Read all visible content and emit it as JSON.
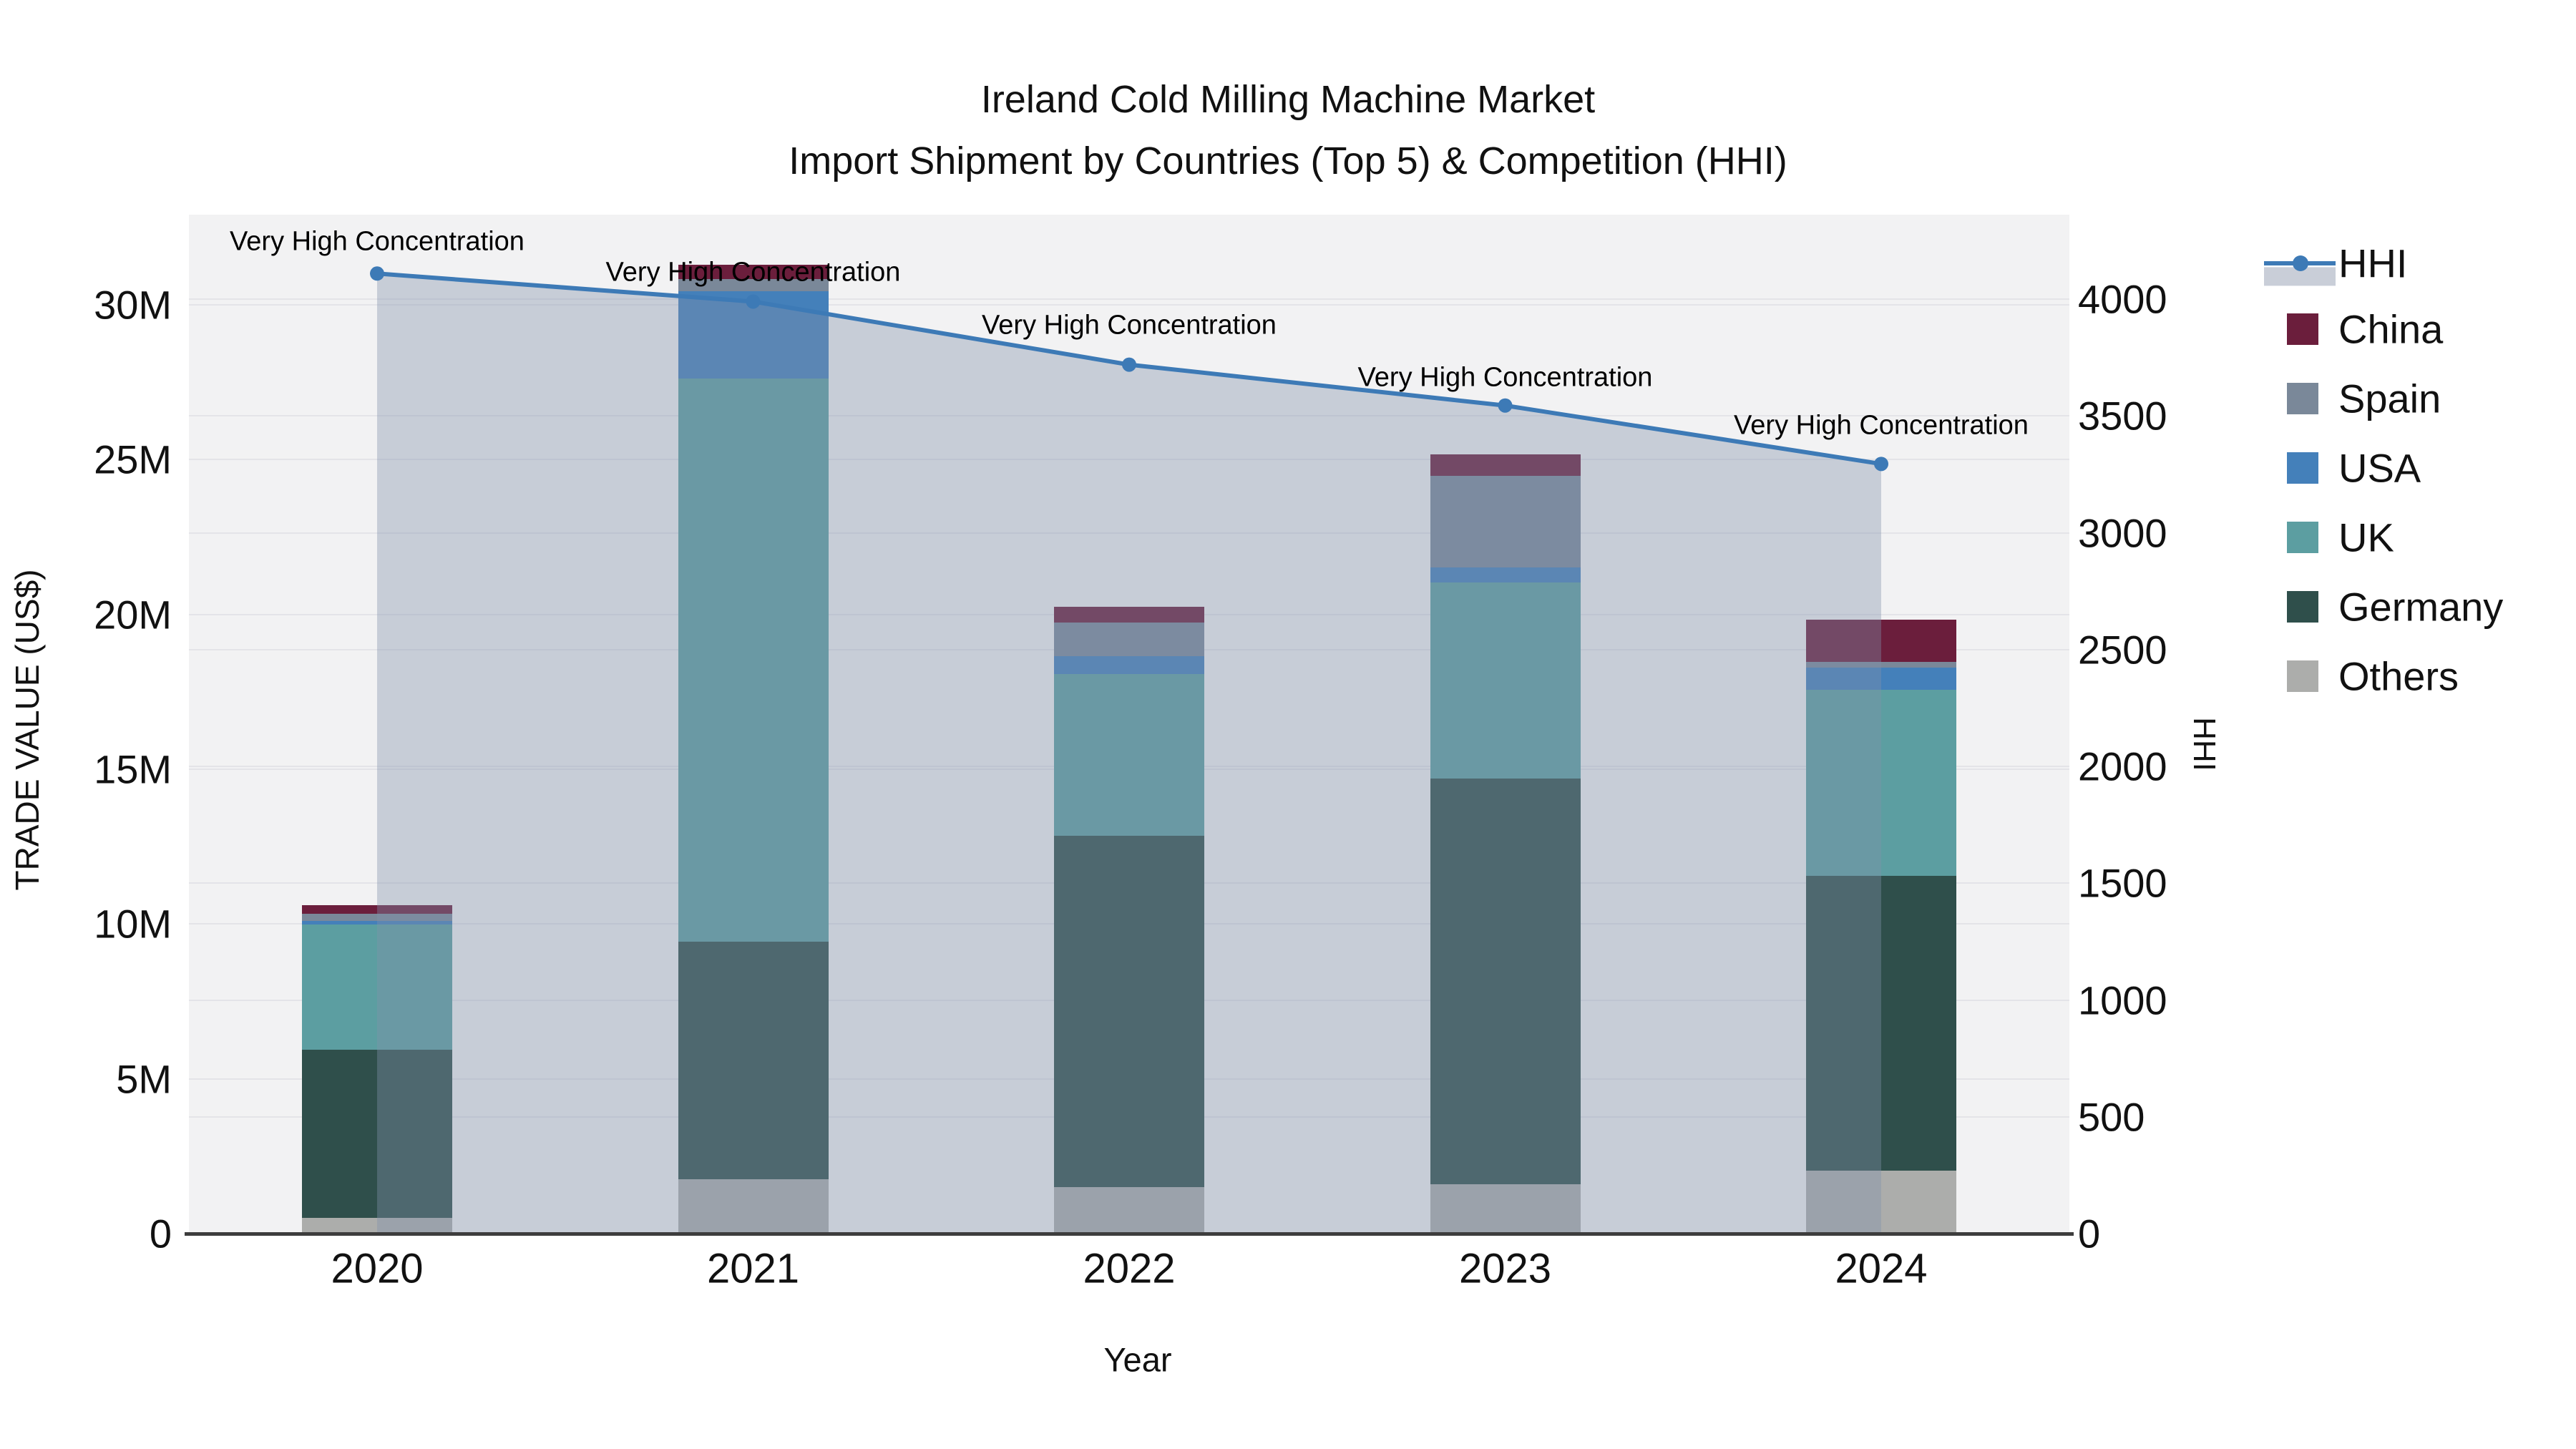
{
  "figure": {
    "title_line1": "Ireland Cold Milling Machine Market",
    "title_line2": "Import Shipment by Countries (Top 5) & Competition (HHI)"
  },
  "axes": {
    "left_title": "TRADE VALUE (US$)",
    "right_title": "HHI",
    "x_title": "Year",
    "left_ticks": [
      "0",
      "5M",
      "10M",
      "15M",
      "20M",
      "25M",
      "30M"
    ],
    "left_tick_values": [
      0,
      5,
      10,
      15,
      20,
      25,
      30
    ],
    "right_ticks": [
      "0",
      "500",
      "1000",
      "1500",
      "2000",
      "2500",
      "3000",
      "3500",
      "4000"
    ],
    "right_tick_values": [
      0,
      500,
      1000,
      1500,
      2000,
      2500,
      3000,
      3500,
      4000
    ]
  },
  "chart_data": {
    "type": "stacked-bar+line",
    "categories": [
      "2020",
      "2021",
      "2022",
      "2023",
      "2024"
    ],
    "value_unit": "M US$",
    "series": [
      {
        "name": "Others",
        "color": "#ACADAB",
        "values": [
          0.5,
          1.76,
          1.5,
          1.6,
          2.03
        ]
      },
      {
        "name": "Germany",
        "color": "#2F4F4B",
        "values": [
          5.45,
          7.67,
          11.35,
          13.1,
          9.53
        ]
      },
      {
        "name": "UK",
        "color": "#5C9EA1",
        "values": [
          4.04,
          18.19,
          5.22,
          6.33,
          6.0
        ]
      },
      {
        "name": "USA",
        "color": "#4480BA",
        "values": [
          0.12,
          2.82,
          0.58,
          0.49,
          0.72
        ]
      },
      {
        "name": "Spain",
        "color": "#7A8899",
        "values": [
          0.21,
          0.39,
          1.09,
          2.95,
          0.19
        ]
      },
      {
        "name": "China",
        "color": "#6B1E3C",
        "values": [
          0.28,
          0.46,
          0.51,
          0.7,
          1.36
        ]
      }
    ],
    "bar_totals": [
      10.6,
      31.29,
      20.25,
      25.17,
      19.83
    ],
    "line": {
      "name": "HHI",
      "color": "#3D7AB6",
      "fill_color": "rgba(130,145,172,0.38)",
      "values": [
        4110,
        3990,
        3720,
        3545,
        3295
      ]
    },
    "annotations": [
      {
        "year": "2020",
        "label": "Very High Concentration"
      },
      {
        "year": "2021",
        "label": "Very High Concentration"
      },
      {
        "year": "2022",
        "label": "Very High Concentration"
      },
      {
        "year": "2023",
        "label": "Very High Concentration"
      },
      {
        "year": "2024",
        "label": "Very High Concentration"
      }
    ],
    "ylim_left": [
      0,
      33
    ],
    "ylim_right": [
      0,
      4360
    ],
    "legend_order": [
      "HHI",
      "China",
      "Spain",
      "USA",
      "UK",
      "Germany",
      "Others"
    ],
    "legend_position": "right"
  }
}
